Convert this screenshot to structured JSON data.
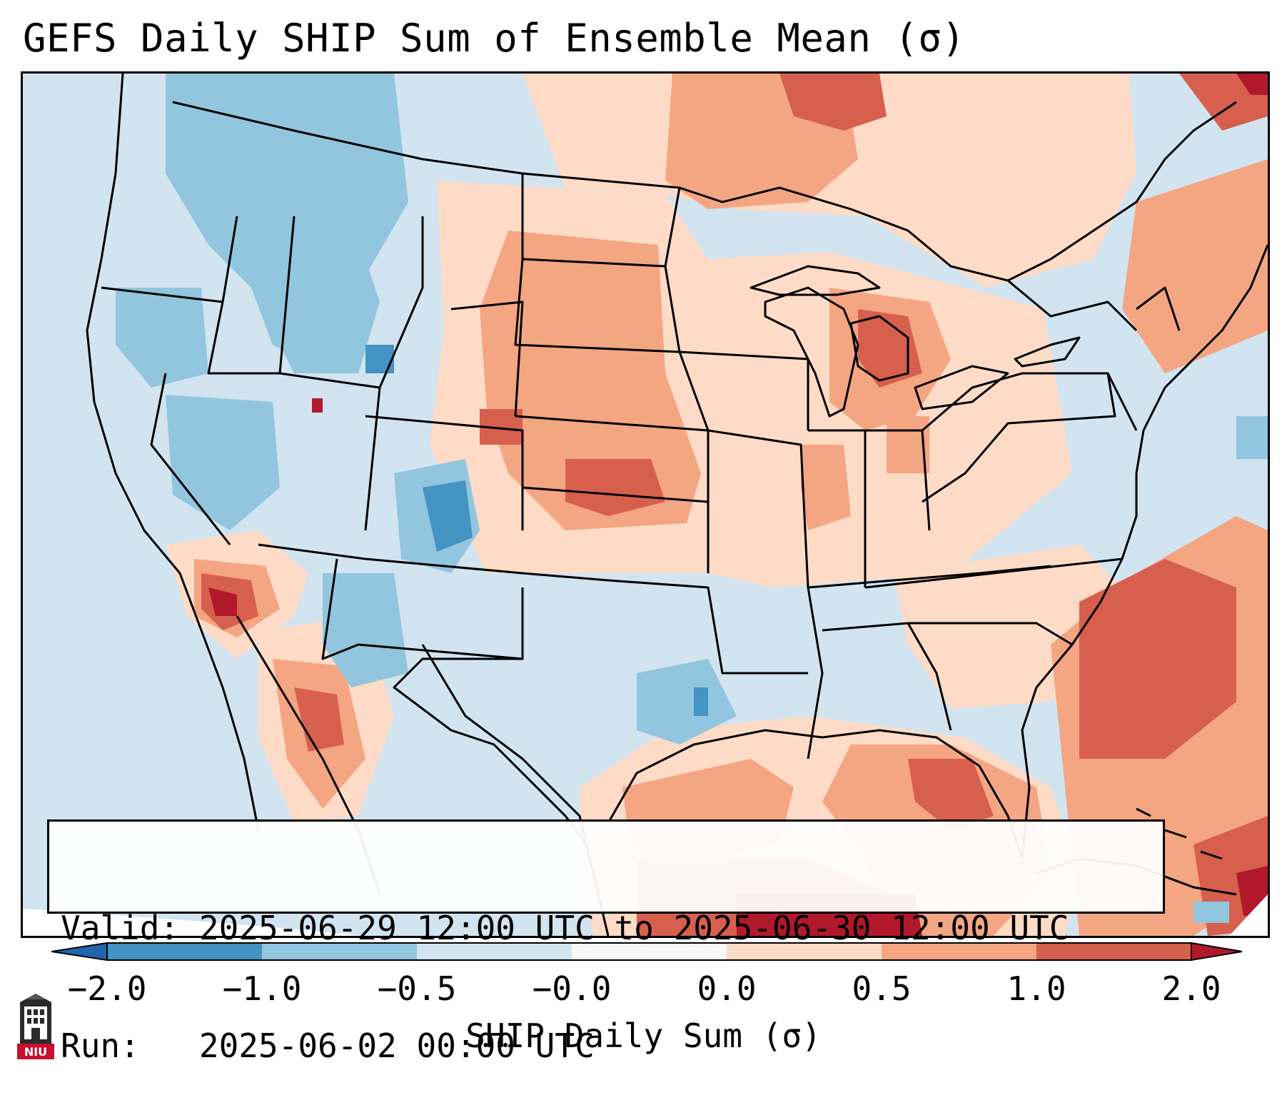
{
  "title": "GEFS Daily SHIP Sum of Ensemble Mean (σ)",
  "info": {
    "valid_label": "Valid:",
    "valid_value": "2025-06-29 12:00 UTC to 2025-06-30 12:00 UTC",
    "run_label": "Run:",
    "run_value": "2025-06-02 00:00 UTC"
  },
  "colorbar": {
    "label": "SHIP Daily Sum (σ)",
    "ticks": [
      "−2.0",
      "−1.0",
      "−0.5",
      "−0.0",
      "0.0",
      "0.5",
      "1.0",
      "2.0"
    ],
    "bins": [
      {
        "from": -2.0,
        "to": -1.0,
        "color": "#4393c3"
      },
      {
        "from": -1.0,
        "to": -0.5,
        "color": "#92c5de"
      },
      {
        "from": -0.5,
        "to": -0.0,
        "color": "#d1e5f0"
      },
      {
        "from": -0.0,
        "to": 0.0,
        "color": "#f7f7f7"
      },
      {
        "from": 0.0,
        "to": 0.5,
        "color": "#fddbc7"
      },
      {
        "from": 0.5,
        "to": 1.0,
        "color": "#f4a582"
      },
      {
        "from": 1.0,
        "to": 2.0,
        "color": "#d6604d"
      }
    ],
    "under_color": "#2166ac",
    "over_color": "#b2182b"
  },
  "map": {
    "domain": "Contiguous United States",
    "ocean_color": "#d1e4f0",
    "boundary_color": "#000000"
  },
  "logo": {
    "text": "NIU",
    "color": "#c8102e"
  }
}
